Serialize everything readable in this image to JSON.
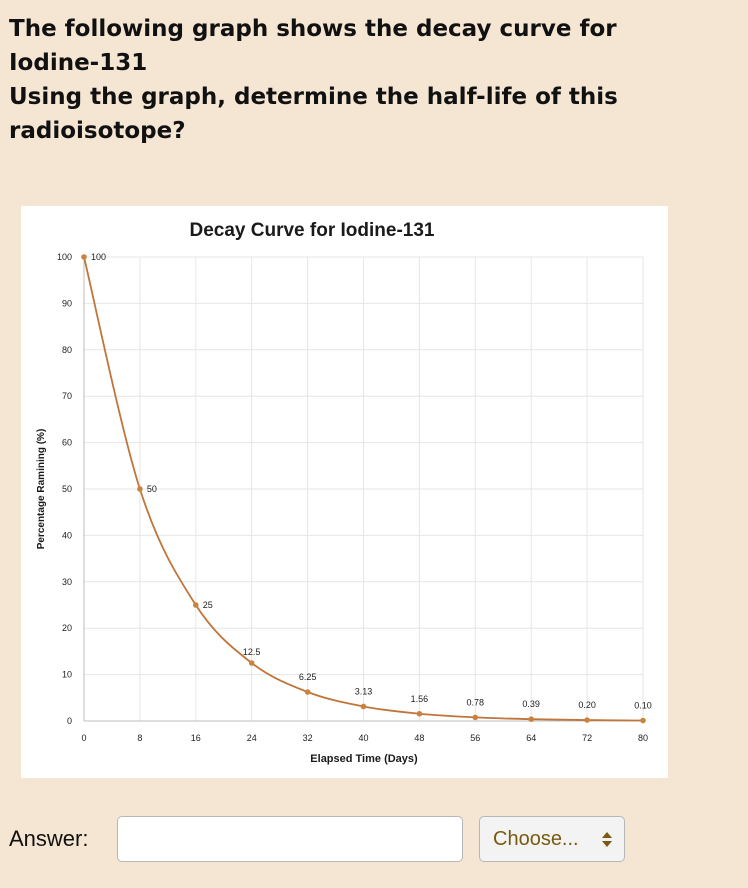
{
  "question": {
    "line1": "The following graph shows the decay curve for",
    "line2": "Iodine-131",
    "line3": "Using the graph, determine the half-life of this",
    "line4": "radioisotope?"
  },
  "answer": {
    "label": "Answer:",
    "value": "",
    "placeholder": "",
    "unit_select": "Choose..."
  },
  "chart_data": {
    "type": "line",
    "title": "Decay Curve for Iodine-131",
    "xlabel": "Elapsed Time (Days)",
    "ylabel": "Percentage Ramining (%)",
    "x": [
      0,
      8,
      16,
      24,
      32,
      40,
      48,
      56,
      64,
      72,
      80
    ],
    "values": [
      100,
      50,
      25,
      12.5,
      6.25,
      3.13,
      1.56,
      0.78,
      0.39,
      0.2,
      0.1
    ],
    "point_labels": [
      "100",
      "50",
      "25",
      "12.5",
      "6.25",
      "3.13",
      "1.56",
      "0.78",
      "0.39",
      "0.20",
      "0.10"
    ],
    "x_ticks": [
      "0",
      "8",
      "16",
      "24",
      "32",
      "40",
      "48",
      "56",
      "64",
      "72",
      "80"
    ],
    "y_ticks": [
      "0",
      "10",
      "20",
      "30",
      "40",
      "50",
      "60",
      "70",
      "80",
      "90",
      "100"
    ],
    "xlim": [
      0,
      80
    ],
    "ylim": [
      0,
      100
    ],
    "grid": true,
    "line_color": "#c0753a",
    "marker_color": "#c9833f",
    "grid_color": "#e6e6e6"
  }
}
